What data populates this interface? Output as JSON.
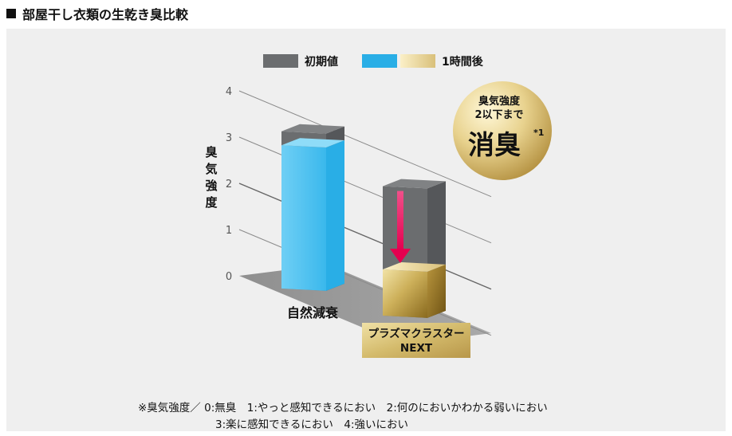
{
  "header": {
    "title": "部屋干し衣類の生乾き臭比較"
  },
  "legend": {
    "initial": "初期値",
    "after": "1時間後"
  },
  "colors": {
    "initial": "#6b6d6f",
    "natural_after": "#29aee6",
    "plasma_after": "#c6a94f",
    "arrow": "#e4004f",
    "nameplate": "#cdb266"
  },
  "badge": {
    "line1": "臭気強度",
    "line2": "2以下まで",
    "main": "消臭",
    "mark": "*1"
  },
  "chart_data": {
    "type": "bar",
    "ylabel": "臭気強度",
    "ylim": [
      0,
      4
    ],
    "yticks": [
      "0",
      "1",
      "2",
      "3",
      "4"
    ],
    "categories": [
      "自然減衰",
      "プラズマクラスター\nNEXT"
    ],
    "category_labels": {
      "natural": "自然減衰",
      "plasma_line1": "プラズマクラスター",
      "plasma_line2": "NEXT"
    },
    "series": [
      {
        "name": "初期値",
        "values": [
          3.4,
          2.8
        ]
      },
      {
        "name": "1時間後",
        "values": [
          3.1,
          1.0
        ]
      }
    ]
  },
  "footnote": {
    "line1": "※臭気強度／ 0:無臭　1:やっと感知できるにおい　2:何のにおいかわかる弱いにおい",
    "line2": "3:楽に感知できるにおい　4:強いにおい"
  }
}
